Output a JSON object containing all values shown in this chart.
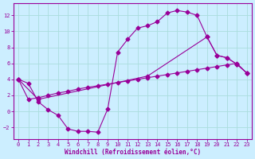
{
  "xlabel": "Windchill (Refroidissement éolien,°C)",
  "bg_color": "#cceeff",
  "grid_color": "#aadddd",
  "line_color": "#990099",
  "line1_x": [
    0,
    1,
    2,
    3,
    4,
    5,
    6,
    7,
    8,
    9,
    10,
    11,
    12,
    13,
    14,
    15,
    16,
    17,
    18,
    19,
    20,
    21,
    22,
    23
  ],
  "line1_y": [
    4.0,
    3.5,
    1.2,
    0.2,
    -0.5,
    -2.2,
    -2.5,
    -2.5,
    -2.6,
    0.3,
    7.4,
    9.0,
    10.4,
    10.7,
    11.2,
    12.3,
    12.6,
    12.4,
    12.0,
    9.3,
    7.0,
    6.7,
    5.9,
    4.8
  ],
  "line2_x": [
    0,
    2,
    13,
    19,
    20,
    21,
    22,
    23
  ],
  "line2_y": [
    4.0,
    1.5,
    4.4,
    9.3,
    7.0,
    6.7,
    5.9,
    4.8
  ],
  "line3_x": [
    0,
    1,
    2,
    3,
    4,
    5,
    6,
    7,
    8,
    9,
    10,
    11,
    12,
    13,
    14,
    15,
    16,
    17,
    18,
    19,
    20,
    21,
    22,
    23
  ],
  "line3_y": [
    4.0,
    1.5,
    1.7,
    2.0,
    2.3,
    2.5,
    2.8,
    3.0,
    3.2,
    3.4,
    3.6,
    3.8,
    4.0,
    4.2,
    4.4,
    4.6,
    4.8,
    5.0,
    5.2,
    5.4,
    5.6,
    5.8,
    6.0,
    4.8
  ],
  "xlim": [
    -0.5,
    23.5
  ],
  "ylim": [
    -3.5,
    13.5
  ],
  "yticks": [
    -2,
    0,
    2,
    4,
    6,
    8,
    10,
    12
  ],
  "xticks": [
    0,
    1,
    2,
    3,
    4,
    5,
    6,
    7,
    8,
    9,
    10,
    11,
    12,
    13,
    14,
    15,
    16,
    17,
    18,
    19,
    20,
    21,
    22,
    23
  ]
}
